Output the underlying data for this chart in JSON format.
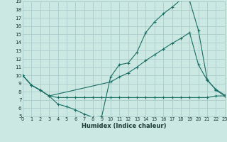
{
  "background_color": "#cce8e2",
  "grid_color": "#aacccc",
  "line_color": "#1a6e64",
  "xlabel": "Humidex (Indice chaleur)",
  "xlim": [
    0,
    23
  ],
  "ylim": [
    5,
    19
  ],
  "xtick_vals": [
    0,
    1,
    2,
    3,
    4,
    5,
    6,
    7,
    8,
    9,
    10,
    11,
    12,
    13,
    14,
    15,
    16,
    17,
    18,
    19,
    20,
    21,
    22,
    23
  ],
  "ytick_vals": [
    5,
    6,
    7,
    8,
    9,
    10,
    11,
    12,
    13,
    14,
    15,
    16,
    17,
    18,
    19
  ],
  "curve1_x": [
    0,
    1,
    2,
    3,
    4,
    5,
    6,
    7,
    8,
    9,
    10,
    11,
    12,
    13,
    14,
    15,
    16,
    17,
    18,
    19,
    20,
    21,
    22,
    23
  ],
  "curve1_y": [
    10.0,
    8.8,
    8.2,
    7.5,
    6.5,
    6.2,
    5.8,
    5.3,
    4.9,
    5.0,
    9.8,
    11.3,
    11.5,
    12.8,
    15.2,
    16.5,
    17.5,
    18.3,
    19.2,
    19.1,
    15.5,
    9.5,
    8.2,
    7.5
  ],
  "curve2_x": [
    0,
    1,
    2,
    3,
    10,
    11,
    12,
    13,
    14,
    15,
    16,
    17,
    18,
    19,
    20,
    21,
    22,
    23
  ],
  "curve2_y": [
    10.0,
    8.8,
    8.2,
    7.5,
    9.2,
    9.8,
    10.3,
    11.0,
    11.8,
    12.5,
    13.2,
    13.9,
    14.5,
    15.2,
    11.3,
    9.4,
    8.3,
    7.6
  ],
  "curve3_x": [
    0,
    1,
    2,
    3,
    4,
    5,
    6,
    7,
    8,
    9,
    10,
    11,
    12,
    13,
    14,
    15,
    16,
    17,
    18,
    19,
    20,
    21,
    22,
    23
  ],
  "curve3_y": [
    10.0,
    8.8,
    8.2,
    7.5,
    7.3,
    7.3,
    7.3,
    7.3,
    7.3,
    7.3,
    7.3,
    7.3,
    7.3,
    7.3,
    7.3,
    7.3,
    7.3,
    7.3,
    7.3,
    7.3,
    7.3,
    7.3,
    7.5,
    7.5
  ]
}
